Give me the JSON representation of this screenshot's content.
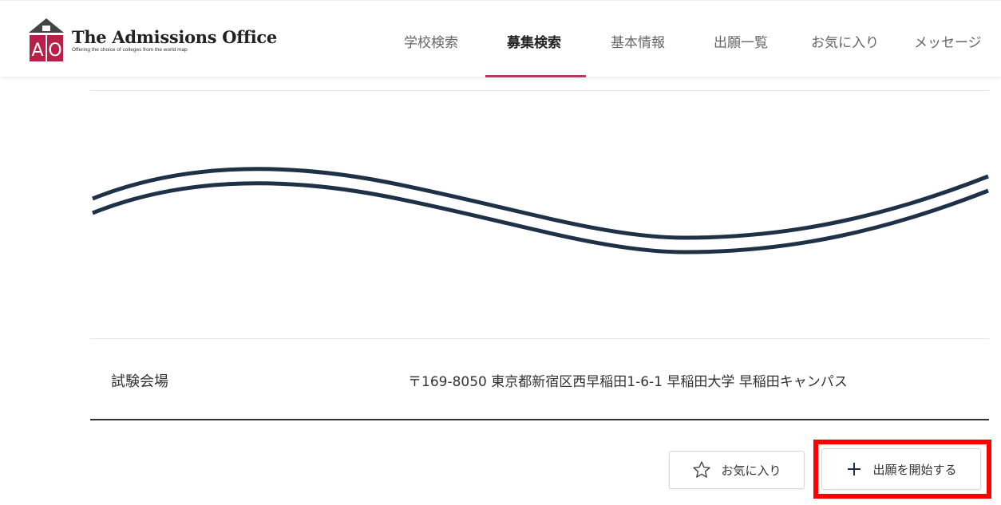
{
  "brand": {
    "title": "The Admissions Office",
    "tagline": "Offering the choice of colleges from the world map",
    "logo_letters": "AO",
    "colors": {
      "crimson": "#b8204a",
      "roof": "#444444"
    }
  },
  "nav": {
    "items": [
      {
        "label": "学校検索",
        "active": false
      },
      {
        "label": "募集検索",
        "active": true
      },
      {
        "label": "基本情報",
        "active": false
      },
      {
        "label": "出願一覧",
        "active": false
      },
      {
        "label": "お気に入り",
        "active": false
      },
      {
        "label": "メッセージ",
        "active": false
      }
    ],
    "accent_color": "#b23a5b"
  },
  "wave": {
    "icon": "wavy-double-line",
    "color": "#1f3147"
  },
  "details": {
    "venue_label": "試験会場",
    "venue_value": "〒169-8050 東京都新宿区西早稲田1-6-1 早稲田大学 早稲田キャンパス"
  },
  "actions": {
    "favorite_label": "お気に入り",
    "favorite_icon": "star-outline-icon",
    "apply_label": "出願を開始する",
    "apply_icon": "plus-icon",
    "highlight_color": "#ff0000"
  }
}
